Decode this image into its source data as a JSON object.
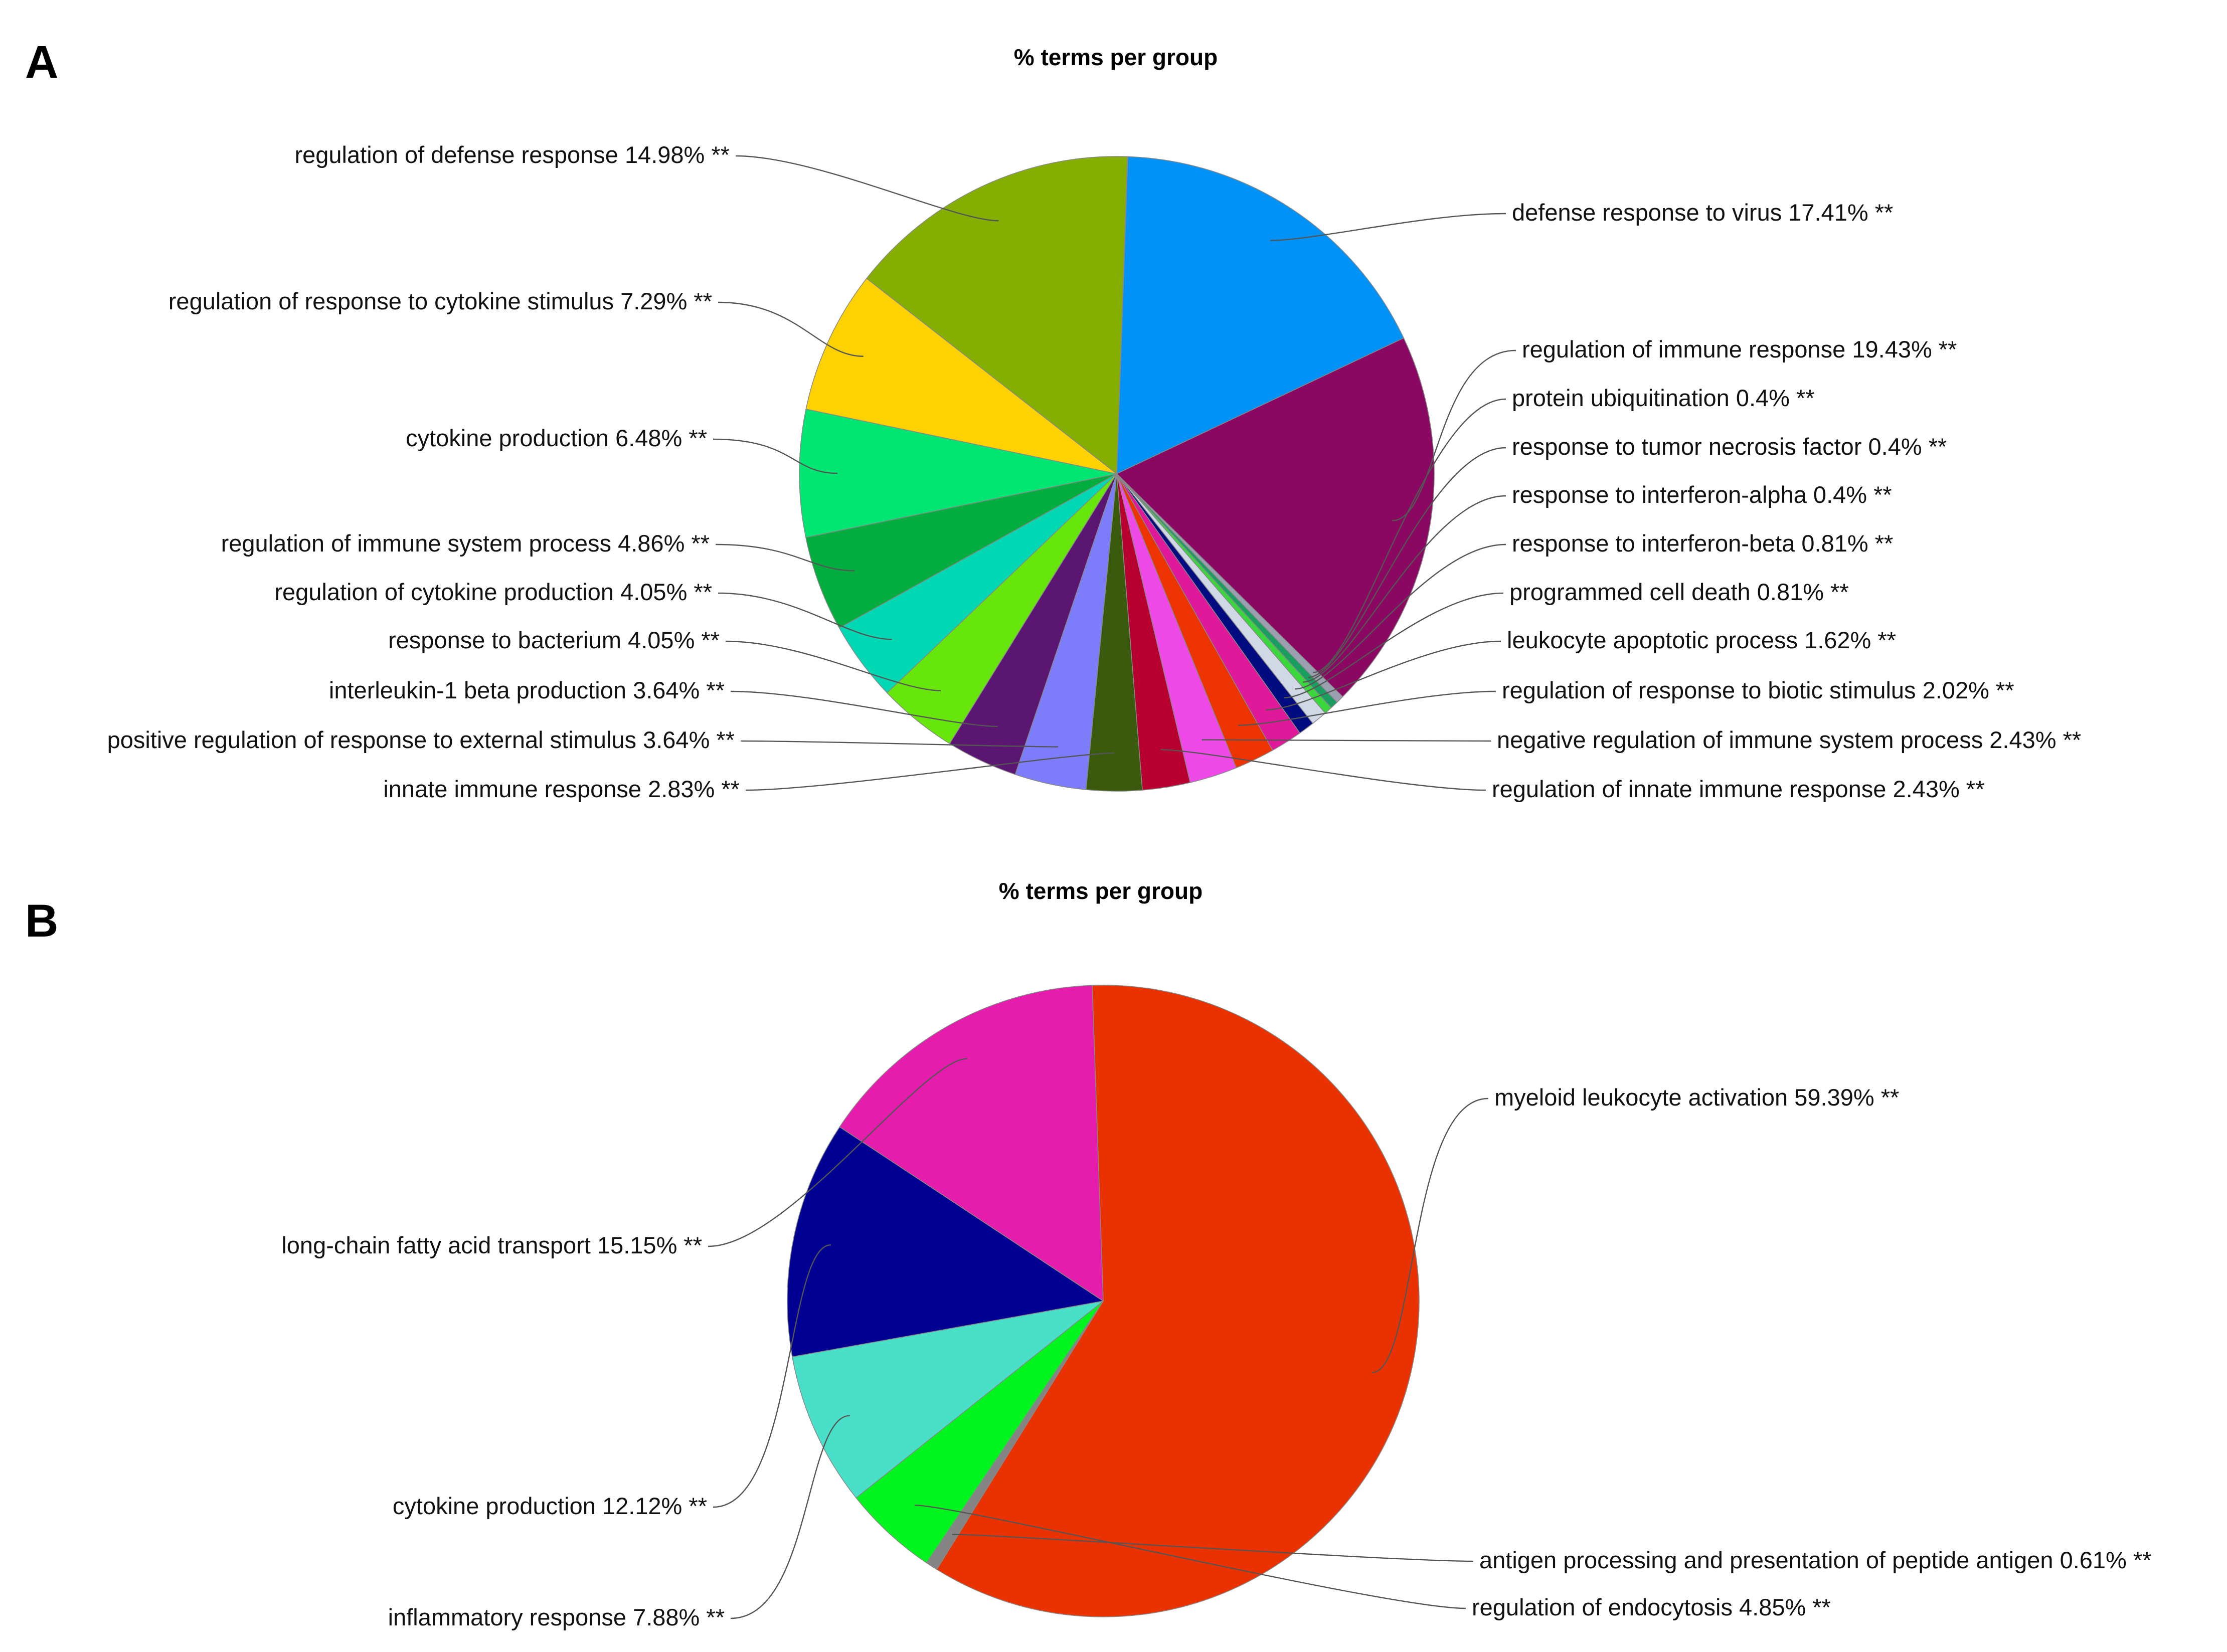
{
  "chart_data": [
    {
      "type": "pie",
      "panel": "A",
      "title": "% terms per group",
      "slices": [
        {
          "label": "defense response to virus 17.41% **",
          "value": 17.41,
          "color": "#0092f6"
        },
        {
          "label": "regulation of immune response 19.43% **",
          "value": 19.43,
          "color": "#8b0862"
        },
        {
          "label": "protein ubiquitination 0.4% **",
          "value": 0.4,
          "color": "#9aa0b0"
        },
        {
          "label": "response to tumor necrosis factor 0.4% **",
          "value": 0.4,
          "color": "#1a9e60"
        },
        {
          "label": "response to interferon-alpha 0.4% **",
          "value": 0.4,
          "color": "#39d63c"
        },
        {
          "label": "response to interferon-beta 0.81% **",
          "value": 0.81,
          "color": "#d0d8e6"
        },
        {
          "label": "programmed cell death 0.81% **",
          "value": 0.81,
          "color": "#000c80"
        },
        {
          "label": "leukocyte apoptotic process 1.62% **",
          "value": 1.62,
          "color": "#e0189a"
        },
        {
          "label": "regulation of response to biotic stimulus 2.02% **",
          "value": 2.02,
          "color": "#ec3300"
        },
        {
          "label": "negative regulation of immune system process 2.43% **",
          "value": 2.43,
          "color": "#ef4ae8"
        },
        {
          "label": "regulation of innate immune response 2.43% **",
          "value": 2.43,
          "color": "#b7002f"
        },
        {
          "label": "innate immune response 2.83% **",
          "value": 2.83,
          "color": "#3a5a0e"
        },
        {
          "label": "positive regulation of response to external stimulus 3.64% **",
          "value": 3.64,
          "color": "#7d7cfb"
        },
        {
          "label": "interleukin-1 beta production 3.64% **",
          "value": 3.64,
          "color": "#5a1670"
        },
        {
          "label": "response to bacterium 4.05% **",
          "value": 4.05,
          "color": "#66e60a"
        },
        {
          "label": "regulation of cytokine production 4.05% **",
          "value": 4.05,
          "color": "#00d8b3"
        },
        {
          "label": "regulation of immune system process 4.86% **",
          "value": 4.86,
          "color": "#00ad3e"
        },
        {
          "label": "cytokine production 6.48% **",
          "value": 6.48,
          "color": "#00e673"
        },
        {
          "label": "regulation of response to cytokine stimulus 7.29% **",
          "value": 7.29,
          "color": "#fdd200"
        },
        {
          "label": "regulation of defense response 14.98% **",
          "value": 14.98,
          "color": "#84ae00"
        },
        {
          "label": "",
          "value": 0.02,
          "color": "#e4a25a"
        }
      ]
    },
    {
      "type": "pie",
      "panel": "B",
      "title": "% terms per group",
      "slices": [
        {
          "label": "myeloid leukocyte activation 59.39% **",
          "value": 59.39,
          "color": "#e93200"
        },
        {
          "label": "antigen processing and presentation of peptide antigen 0.61% **",
          "value": 0.61,
          "color": "#848484"
        },
        {
          "label": "regulation of endocytosis 4.85% **",
          "value": 4.85,
          "color": "#00f51f"
        },
        {
          "label": "inflammatory response 7.88% **",
          "value": 7.88,
          "color": "#48e0c9"
        },
        {
          "label": "cytokine production 12.12% **",
          "value": 12.12,
          "color": "#000093"
        },
        {
          "label": "long-chain fatty acid transport 15.15% **",
          "value": 15.15,
          "color": "#e51cac"
        }
      ]
    }
  ]
}
